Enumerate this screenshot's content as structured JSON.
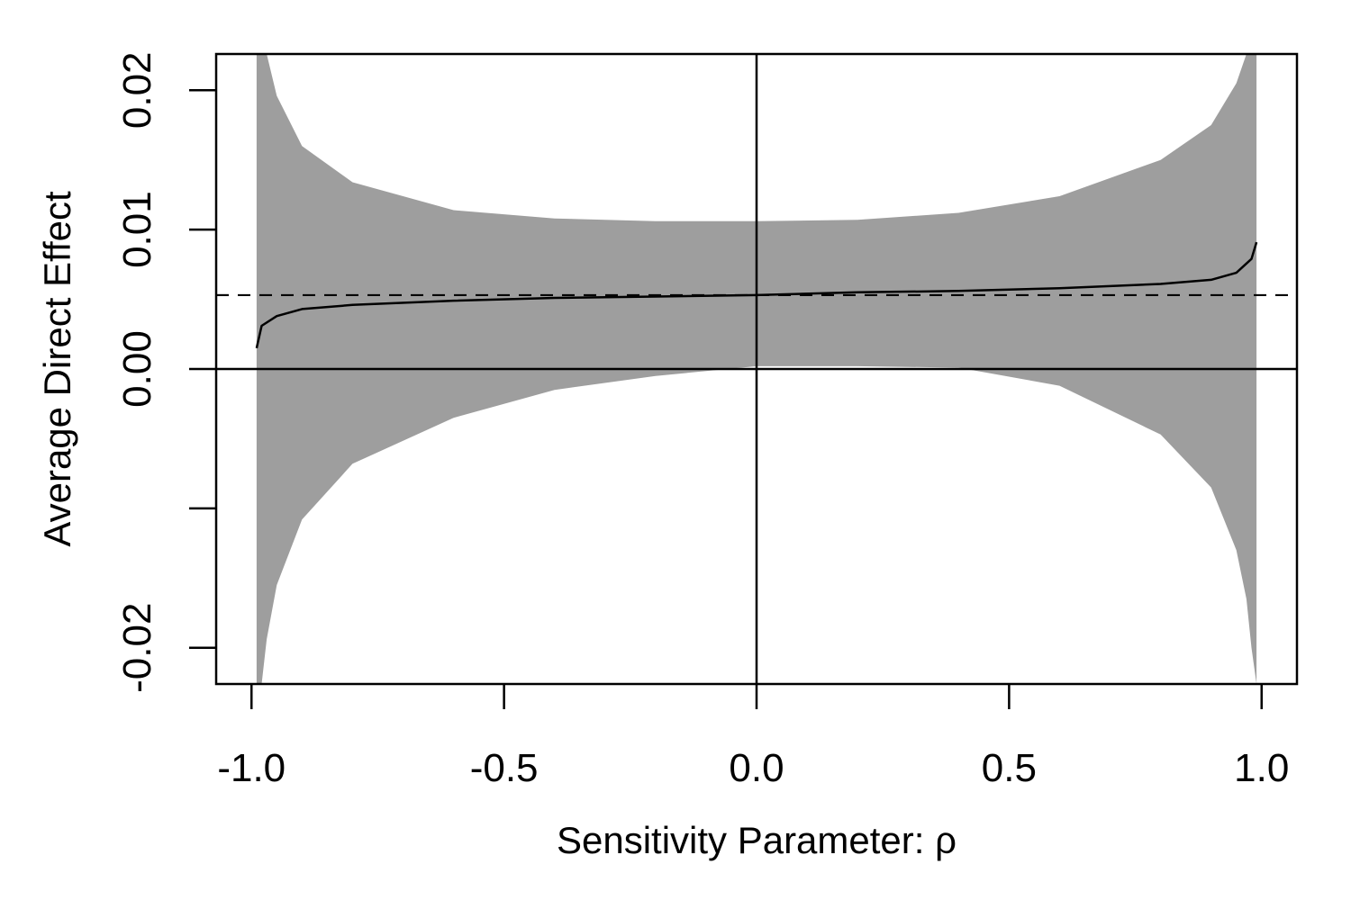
{
  "chart_data": {
    "type": "area",
    "title": "",
    "xlabel": "Sensitivity Parameter: ρ",
    "ylabel": "Average Direct Effect",
    "xlim": [
      -1.07,
      1.07
    ],
    "ylim": [
      -0.0226,
      0.0226
    ],
    "xticks": [
      -1.0,
      -0.5,
      0.0,
      0.5,
      1.0
    ],
    "xtick_labels": [
      "-1.0",
      "-0.5",
      "0.0",
      "0.5",
      "1.0"
    ],
    "yticks": [
      -0.02,
      -0.01,
      0.0,
      0.01,
      0.02
    ],
    "ytick_labels": [
      "-0.02",
      "",
      "0.00",
      "0.01",
      "0.02"
    ],
    "reference_lines": {
      "horizontal_solid": 0.0,
      "vertical_solid": 0.0,
      "horizontal_dashed": 0.0053
    },
    "series": [
      {
        "kind": "line",
        "x": [
          -0.99,
          -0.98,
          -0.95,
          -0.9,
          -0.8,
          -0.6,
          -0.4,
          -0.2,
          0.0,
          0.2,
          0.4,
          0.6,
          0.8,
          0.9,
          0.95,
          0.98,
          0.99
        ],
        "y": [
          0.0015,
          0.0031,
          0.0038,
          0.0043,
          0.0046,
          0.0049,
          0.0051,
          0.0052,
          0.0053,
          0.0055,
          0.0056,
          0.0058,
          0.0061,
          0.0064,
          0.0069,
          0.0079,
          0.0091
        ]
      },
      {
        "kind": "band",
        "color": "#9e9e9e",
        "x": [
          -0.99,
          -0.98,
          -0.97,
          -0.95,
          -0.9,
          -0.8,
          -0.6,
          -0.4,
          -0.2,
          0.0,
          0.2,
          0.4,
          0.6,
          0.8,
          0.9,
          0.95,
          0.97,
          0.98,
          0.99
        ],
        "lower": [
          -0.0226,
          -0.0226,
          -0.0194,
          -0.0155,
          -0.0108,
          -0.0068,
          -0.0035,
          -0.0015,
          -0.0005,
          0.0002,
          0.0002,
          0.0001,
          -0.0012,
          -0.0047,
          -0.0085,
          -0.013,
          -0.0165,
          -0.02,
          -0.0226
        ],
        "upper": [
          0.0226,
          0.0226,
          0.0226,
          0.0196,
          0.016,
          0.0134,
          0.0114,
          0.0108,
          0.0106,
          0.0106,
          0.0107,
          0.0112,
          0.0124,
          0.015,
          0.0175,
          0.0205,
          0.0226,
          0.0226,
          0.0226
        ]
      }
    ]
  }
}
